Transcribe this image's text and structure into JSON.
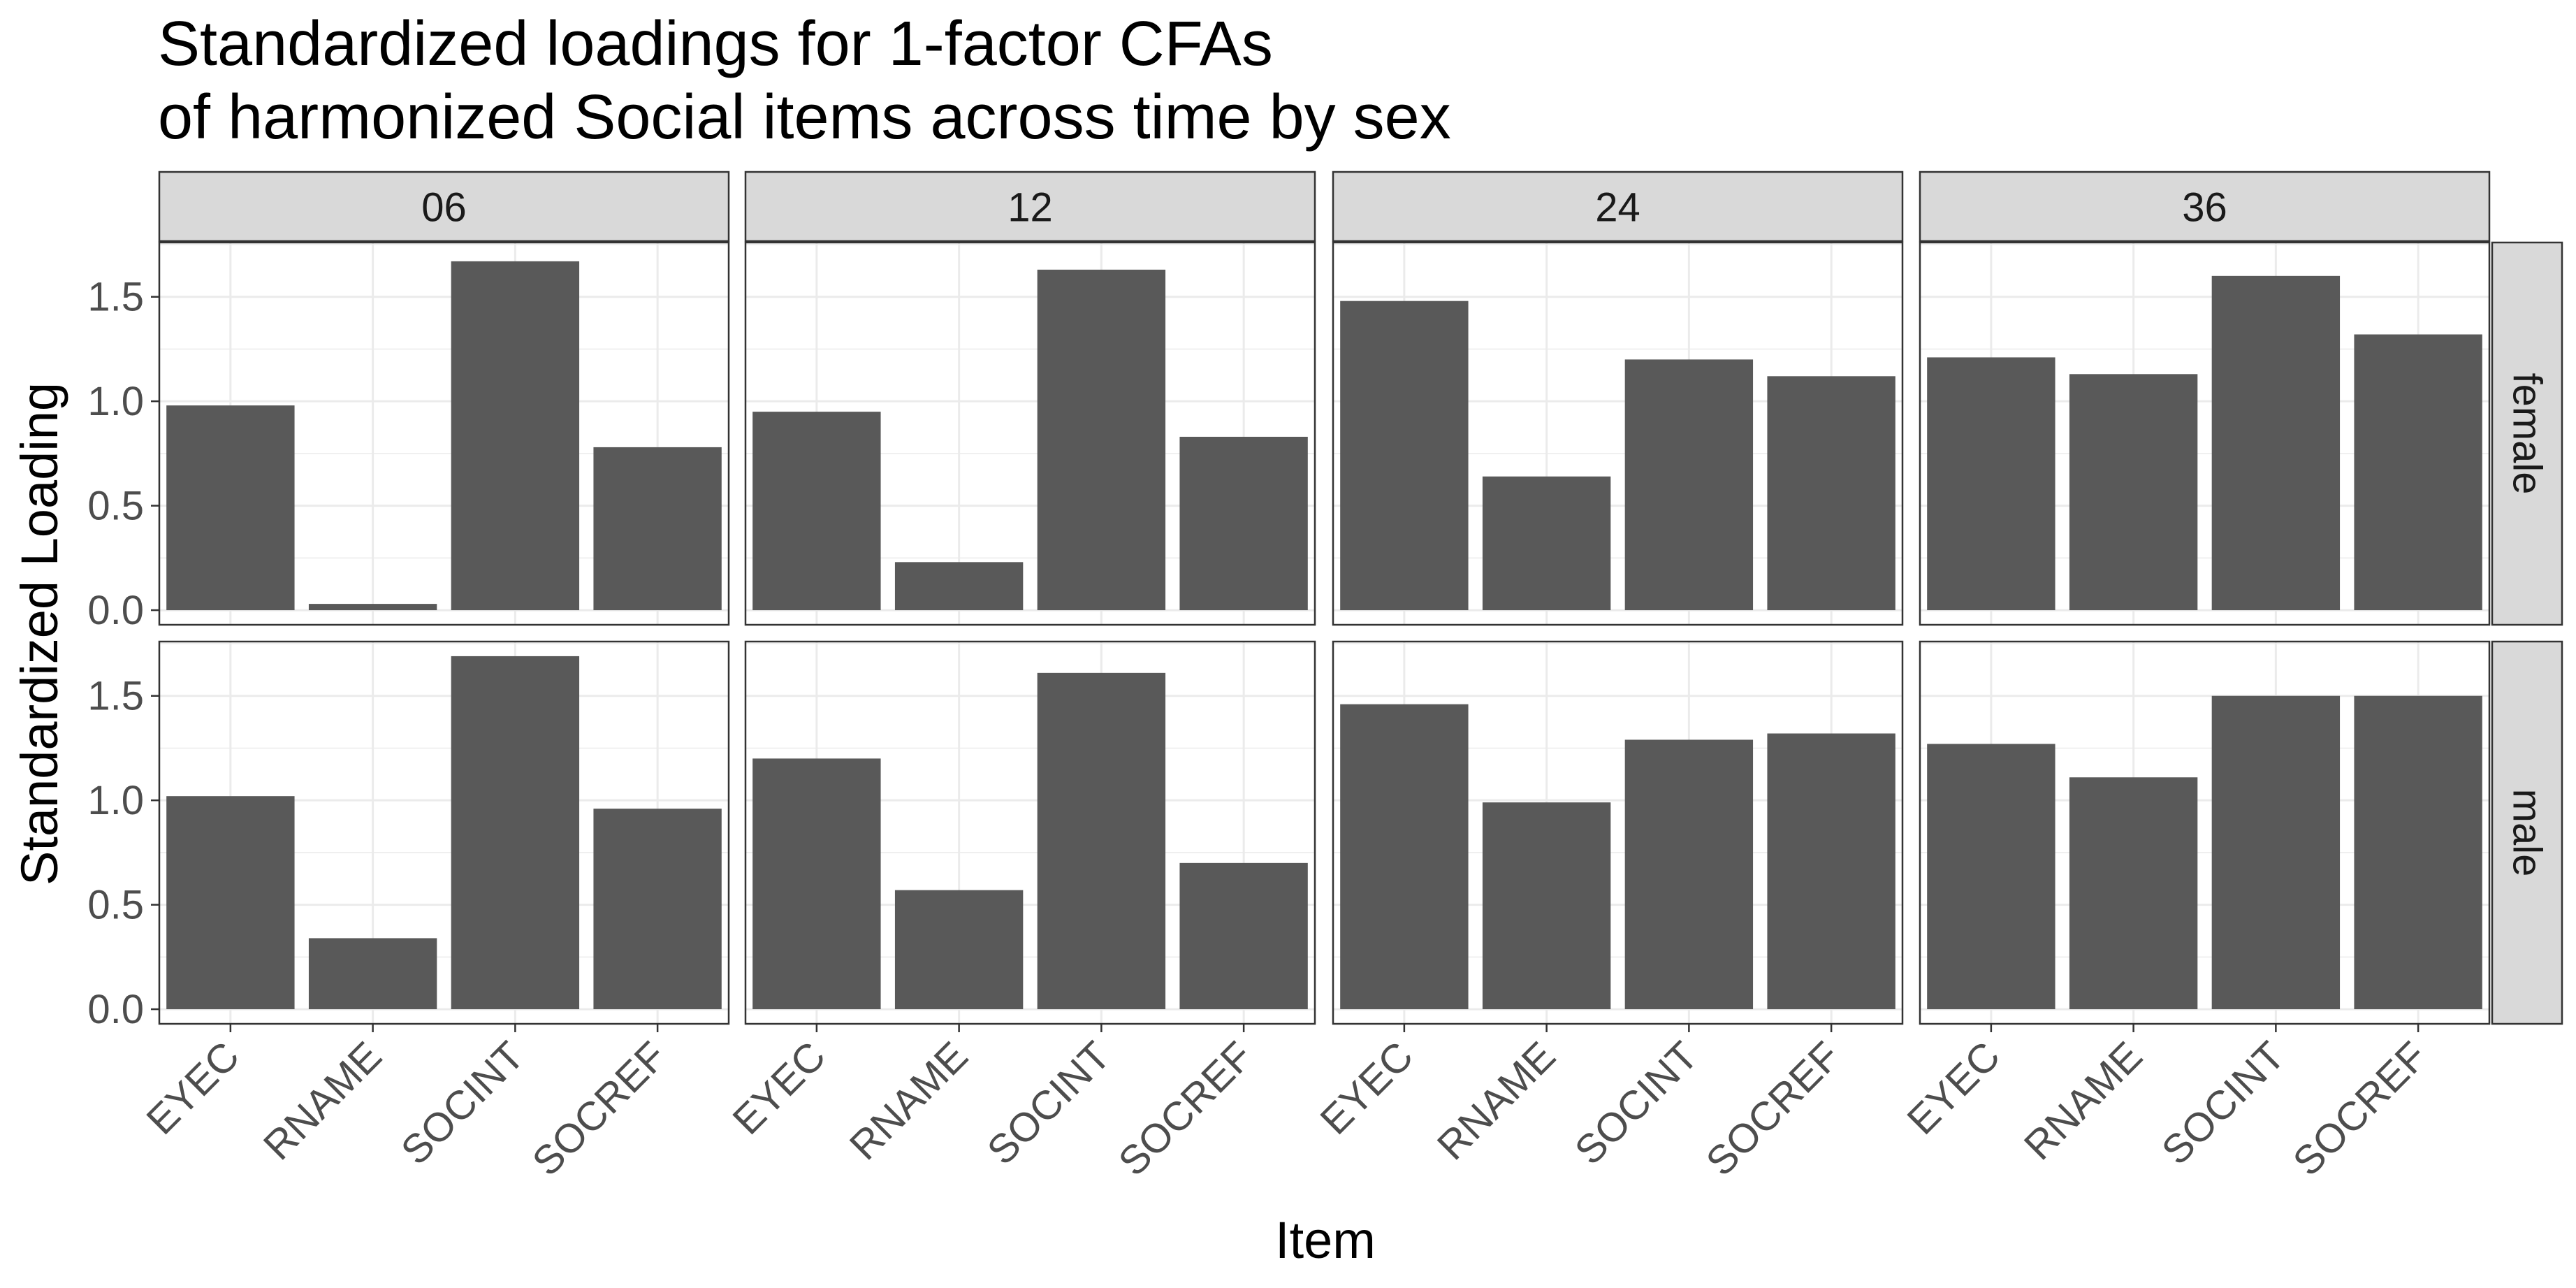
{
  "chart_data": {
    "type": "bar",
    "title_lines": [
      "Standardized loadings for 1-factor CFAs",
      "of harmonized Social items across time by sex"
    ],
    "xlabel": "Item",
    "ylabel": "Standardized Loading",
    "categories": [
      "EYEC",
      "RNAME",
      "SOCINT",
      "SOCREF"
    ],
    "col_facets": [
      "06",
      "12",
      "24",
      "36"
    ],
    "row_facets": [
      "female",
      "male"
    ],
    "ylim": [
      -0.07,
      1.76
    ],
    "yticks": [
      0.0,
      0.5,
      1.0,
      1.5
    ],
    "ytick_labels": [
      "0.0",
      "0.5",
      "1.0",
      "1.5"
    ],
    "grid": true,
    "bar_color": "#595959",
    "strip_color": "#d9d9d9",
    "panels": [
      {
        "row": "female",
        "col": "06",
        "values": [
          0.98,
          0.03,
          1.67,
          0.78
        ]
      },
      {
        "row": "female",
        "col": "12",
        "values": [
          0.95,
          0.23,
          1.63,
          0.83
        ]
      },
      {
        "row": "female",
        "col": "24",
        "values": [
          1.48,
          0.64,
          1.2,
          1.12
        ]
      },
      {
        "row": "female",
        "col": "36",
        "values": [
          1.21,
          1.13,
          1.6,
          1.32
        ]
      },
      {
        "row": "male",
        "col": "06",
        "values": [
          1.02,
          0.34,
          1.69,
          0.96
        ]
      },
      {
        "row": "male",
        "col": "12",
        "values": [
          1.2,
          0.57,
          1.61,
          0.7
        ]
      },
      {
        "row": "male",
        "col": "24",
        "values": [
          1.46,
          0.99,
          1.29,
          1.32
        ]
      },
      {
        "row": "male",
        "col": "36",
        "values": [
          1.27,
          1.11,
          1.5,
          1.5
        ]
      }
    ]
  }
}
